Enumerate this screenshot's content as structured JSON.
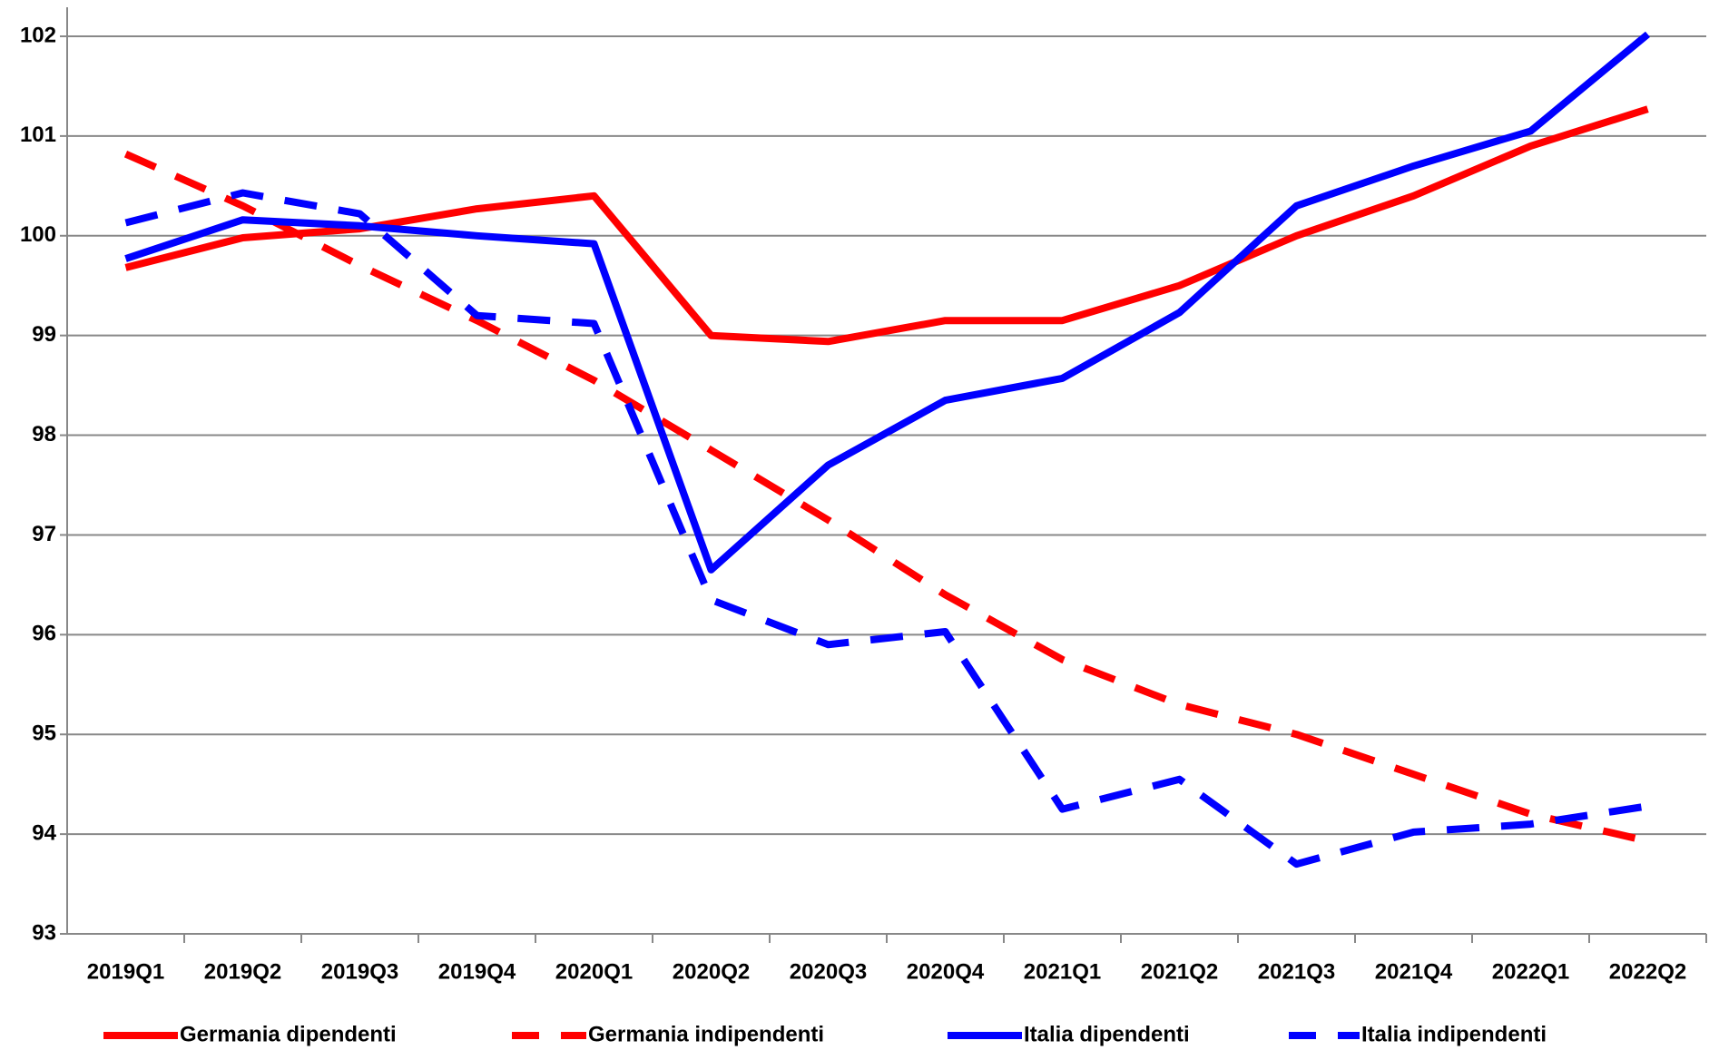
{
  "chart_data": {
    "type": "line",
    "categories": [
      "2019Q1",
      "2019Q2",
      "2019Q3",
      "2019Q4",
      "2020Q1",
      "2020Q2",
      "2020Q3",
      "2020Q4",
      "2021Q1",
      "2021Q2",
      "2021Q3",
      "2021Q4",
      "2022Q1",
      "2022Q2"
    ],
    "series": [
      {
        "name": "Germania dipendenti",
        "color": "#ff0000",
        "dashed": false,
        "values": [
          99.68,
          99.98,
          100.07,
          100.27,
          100.4,
          99.0,
          98.94,
          99.15,
          99.15,
          99.5,
          100.0,
          100.4,
          100.9,
          101.27
        ]
      },
      {
        "name": "Germania indipendenti",
        "color": "#ff0000",
        "dashed": true,
        "values": [
          100.82,
          100.3,
          99.7,
          99.15,
          98.55,
          97.85,
          97.15,
          96.4,
          95.75,
          95.3,
          95.0,
          94.6,
          94.2,
          93.93
        ]
      },
      {
        "name": "Italia dipendenti",
        "color": "#0000ff",
        "dashed": false,
        "values": [
          99.77,
          100.16,
          100.1,
          100.0,
          99.92,
          96.65,
          97.7,
          98.35,
          98.57,
          99.23,
          100.3,
          100.7,
          101.05,
          102.02
        ]
      },
      {
        "name": "Italia indipendenti",
        "color": "#0000ff",
        "dashed": true,
        "values": [
          100.13,
          100.43,
          100.22,
          99.2,
          99.12,
          96.35,
          95.9,
          96.03,
          94.25,
          94.55,
          93.7,
          94.02,
          94.1,
          94.28
        ]
      }
    ],
    "ylim": [
      93,
      102
    ],
    "yticks": [
      93,
      94,
      95,
      96,
      97,
      98,
      99,
      100,
      101,
      102
    ],
    "grid": true,
    "legend": "bottom"
  }
}
